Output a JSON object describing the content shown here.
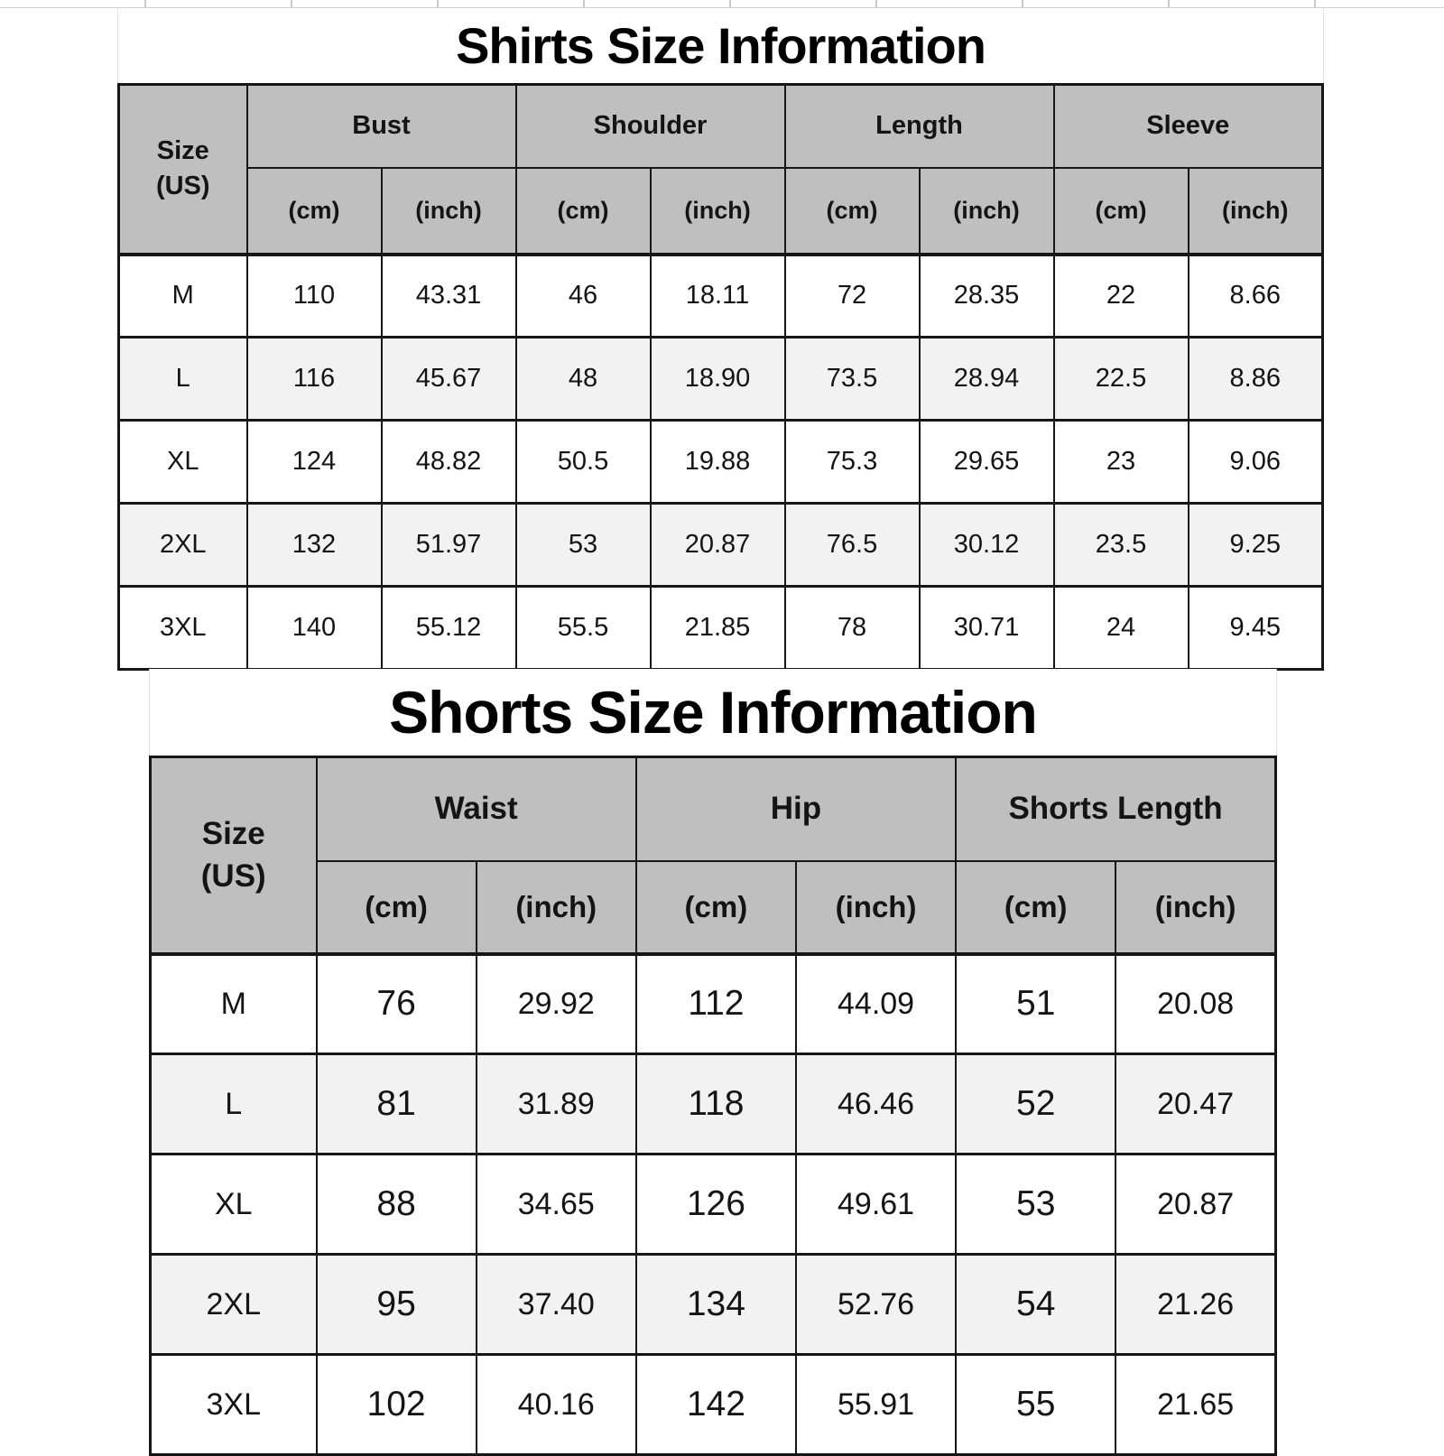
{
  "colors": {
    "header_bg": "#bfbfbf",
    "row_alt_bg": "#f2f2f2",
    "border": "#161616",
    "text": "#141414",
    "gridline_remnant": "#c9c9c9"
  },
  "units": {
    "cm": "(cm)",
    "inch": "(inch)"
  },
  "shirts": {
    "title": "Shirts Size Information",
    "size_label": [
      "Size",
      "(US)"
    ],
    "groups": [
      "Bust",
      "Shoulder",
      "Length",
      "Sleeve"
    ],
    "rows": [
      {
        "size": "M",
        "cells": [
          "110",
          "43.31",
          "46",
          "18.11",
          "72",
          "28.35",
          "22",
          "8.66"
        ]
      },
      {
        "size": "L",
        "cells": [
          "116",
          "45.67",
          "48",
          "18.90",
          "73.5",
          "28.94",
          "22.5",
          "8.86"
        ]
      },
      {
        "size": "XL",
        "cells": [
          "124",
          "48.82",
          "50.5",
          "19.88",
          "75.3",
          "29.65",
          "23",
          "9.06"
        ]
      },
      {
        "size": "2XL",
        "cells": [
          "132",
          "51.97",
          "53",
          "20.87",
          "76.5",
          "30.12",
          "23.5",
          "9.25"
        ]
      },
      {
        "size": "3XL",
        "cells": [
          "140",
          "55.12",
          "55.5",
          "21.85",
          "78",
          "30.71",
          "24",
          "9.45"
        ]
      }
    ]
  },
  "shorts": {
    "title": "Shorts Size Information",
    "size_label": [
      "Size",
      "(US)"
    ],
    "groups": [
      "Waist",
      "Hip",
      "Shorts Length"
    ],
    "rows": [
      {
        "size": "M",
        "cells": [
          "76",
          "29.92",
          "112",
          "44.09",
          "51",
          "20.08"
        ]
      },
      {
        "size": "L",
        "cells": [
          "81",
          "31.89",
          "118",
          "46.46",
          "52",
          "20.47"
        ]
      },
      {
        "size": "XL",
        "cells": [
          "88",
          "34.65",
          "126",
          "49.61",
          "53",
          "20.87"
        ]
      },
      {
        "size": "2XL",
        "cells": [
          "95",
          "37.40",
          "134",
          "52.76",
          "54",
          "21.26"
        ]
      },
      {
        "size": "3XL",
        "cells": [
          "102",
          "40.16",
          "142",
          "55.91",
          "55",
          "21.65"
        ]
      }
    ]
  }
}
